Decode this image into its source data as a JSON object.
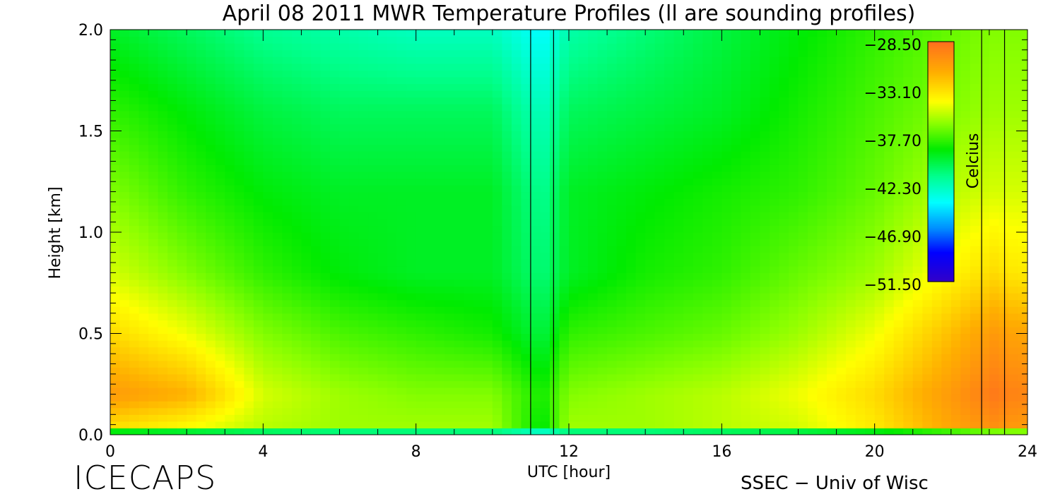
{
  "chart_data": {
    "type": "heatmap",
    "title": "April 08 2011 MWR Temperature Profiles (ll are sounding profiles)",
    "xlabel": "UTC [hour]",
    "ylabel": "Height [km]",
    "xlim": [
      0,
      24
    ],
    "ylim": [
      0,
      2.0
    ],
    "x_ticks": [
      0,
      4,
      8,
      12,
      16,
      20,
      24
    ],
    "y_ticks": [
      0.0,
      0.5,
      1.0,
      1.5,
      2.0
    ],
    "x_tick_labels": [
      "0",
      "4",
      "8",
      "12",
      "16",
      "20",
      "24"
    ],
    "y_tick_labels": [
      "0.0",
      "0.5",
      "1.0",
      "1.5",
      "2.0"
    ],
    "colorbar": {
      "label": "Celcius",
      "min": -51.5,
      "max": -28.5,
      "tick_values": [
        -28.5,
        -33.1,
        -37.7,
        -42.3,
        -46.9,
        -51.5
      ],
      "tick_labels": [
        "−28.50",
        "−33.10",
        "−37.70",
        "−42.30",
        "−46.90",
        "−51.50"
      ],
      "colormap": "blue-cyan-green-yellow-orange"
    },
    "sounding_times_hour": [
      11.0,
      11.6,
      22.8,
      23.4
    ],
    "temperature_grid": {
      "x_hours": [
        0,
        2,
        4,
        6,
        8,
        10,
        11.3,
        12,
        14,
        16,
        18,
        20,
        22,
        23.1,
        23.7
      ],
      "y_km": [
        0.0,
        0.05,
        0.2,
        0.5,
        0.8,
        1.2,
        1.6,
        2.0
      ],
      "values_celsius": [
        [
          -42.0,
          -42.5,
          -43.0,
          -43.5,
          -43.5,
          -43.5,
          -44.5,
          -43.5,
          -43.5,
          -43.0,
          -42.5,
          -42.0,
          -41.0,
          -40.0,
          -39.5
        ],
        [
          -33.0,
          -34.0,
          -35.5,
          -36.0,
          -36.0,
          -36.0,
          -39.0,
          -36.0,
          -36.0,
          -35.5,
          -35.0,
          -33.5,
          -31.0,
          -30.0,
          -30.5
        ],
        [
          -30.5,
          -31.5,
          -35.0,
          -36.0,
          -36.5,
          -36.5,
          -38.5,
          -36.5,
          -36.0,
          -35.5,
          -34.5,
          -33.0,
          -30.5,
          -29.0,
          -29.5
        ],
        [
          -33.0,
          -34.5,
          -36.5,
          -37.5,
          -38.0,
          -38.5,
          -40.0,
          -38.0,
          -37.5,
          -37.0,
          -36.0,
          -34.5,
          -32.0,
          -30.5,
          -31.0
        ],
        [
          -35.0,
          -36.5,
          -38.0,
          -39.0,
          -39.5,
          -39.5,
          -41.0,
          -39.5,
          -38.5,
          -38.0,
          -37.0,
          -36.0,
          -34.0,
          -33.0,
          -33.5
        ],
        [
          -36.5,
          -38.0,
          -39.0,
          -39.5,
          -39.5,
          -39.5,
          -41.5,
          -39.5,
          -39.0,
          -38.5,
          -38.0,
          -37.0,
          -35.5,
          -35.0,
          -35.0
        ],
        [
          -38.0,
          -39.0,
          -40.0,
          -40.5,
          -40.5,
          -40.5,
          -42.5,
          -40.5,
          -40.0,
          -39.5,
          -38.5,
          -37.5,
          -36.5,
          -36.0,
          -36.0
        ],
        [
          -39.5,
          -40.5,
          -41.5,
          -42.0,
          -42.5,
          -42.5,
          -44.0,
          -42.0,
          -41.0,
          -40.0,
          -39.0,
          -38.0,
          -37.0,
          -36.5,
          -36.5
        ]
      ]
    }
  },
  "branding": {
    "left": "ICECAPS",
    "right": "SSEC − Univ of Wisc"
  }
}
